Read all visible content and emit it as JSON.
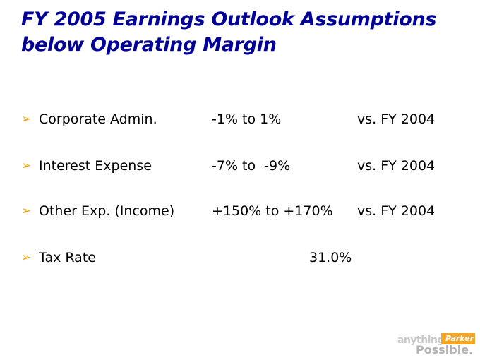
{
  "title": {
    "line1": "FY 2005  Earnings Outlook Assumptions",
    "line2": "below Operating Margin"
  },
  "rows": [
    {
      "label": "Corporate Admin.",
      "value": "-1% to 1%",
      "comparison": "vs. FY 2004"
    },
    {
      "label": "Interest Expense",
      "value": "-7% to  -9%",
      "comparison": "vs. FY 2004"
    },
    {
      "label": "Other Exp. (Income)",
      "value": "+150% to +170%",
      "comparison": "vs. FY 2004"
    },
    {
      "label": "Tax Rate",
      "value": "31.0%"
    }
  ],
  "bullet_glyph": "➢",
  "logo": {
    "anything": "anything",
    "parker": "Parker",
    "possible": "Possible."
  },
  "colors": {
    "title": "#000099",
    "bullet": "#f0a000",
    "logo_accent": "#f5a623"
  }
}
